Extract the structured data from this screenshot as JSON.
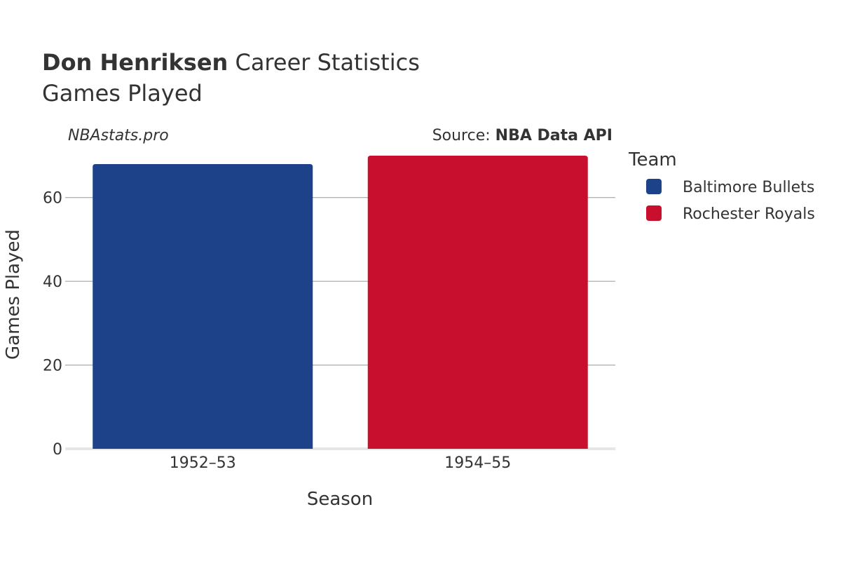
{
  "title": {
    "bold": "Don Henriksen",
    "rest": " Career Statistics",
    "subtitle": "Games Played"
  },
  "watermark": "NBAstats.pro",
  "source": {
    "prefix": "Source: ",
    "name": "NBA Data API"
  },
  "legend": {
    "title": "Team",
    "placement": "top-right, outside plot"
  },
  "chart_data": {
    "type": "bar",
    "categories": [
      "1952–53",
      "1954–55"
    ],
    "series": [
      {
        "name": "Baltimore Bullets",
        "color": "#1d428a",
        "values": [
          68,
          null
        ]
      },
      {
        "name": "Rochester Royals",
        "color": "#c8102e",
        "values": [
          null,
          70
        ]
      }
    ],
    "xlabel": "Season",
    "ylabel": "Games Played",
    "ylim": [
      0,
      70
    ],
    "yticks": [
      0,
      20,
      40,
      60
    ],
    "grid": true
  }
}
